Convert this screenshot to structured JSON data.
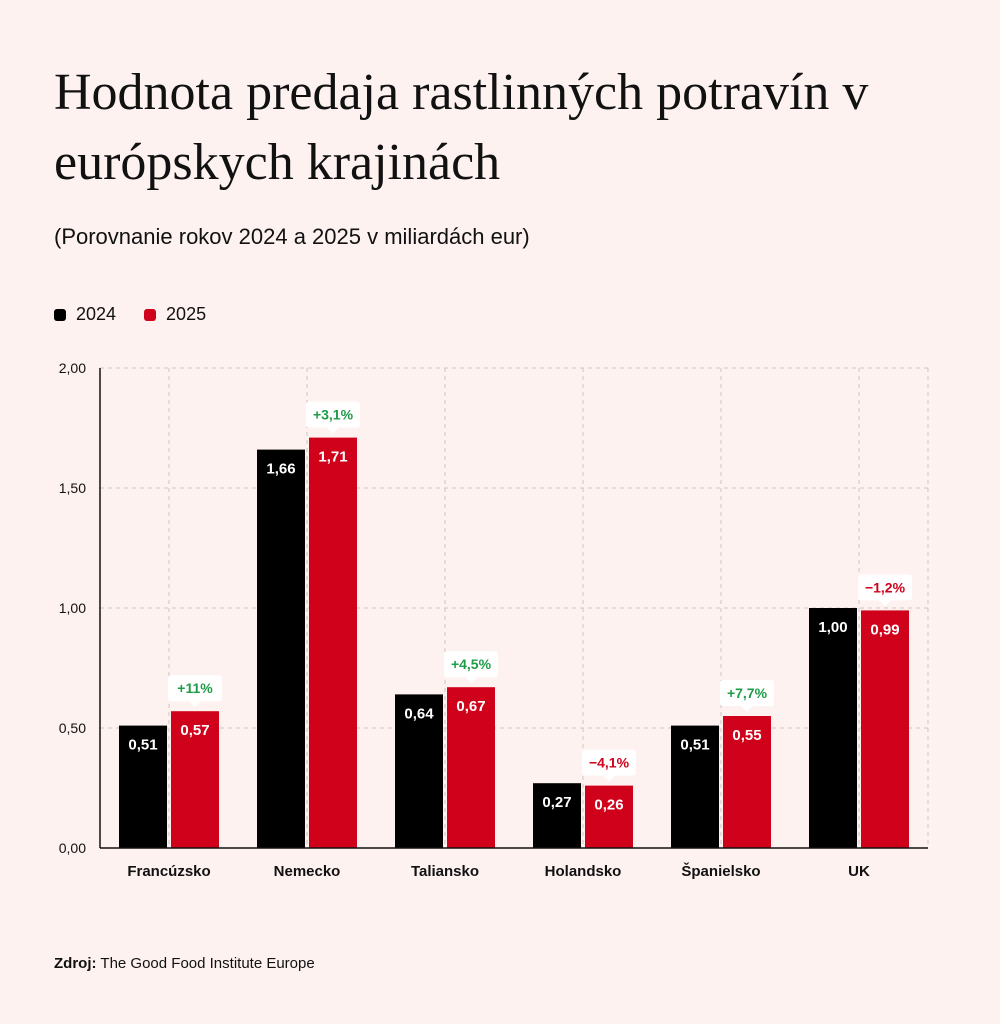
{
  "title": "Hodnota predaja rastlinných potravín v európskych krajinách",
  "subtitle": "(Porovnanie rokov 2024 a 2025 v miliardách eur)",
  "source": {
    "label": "Zdroj:",
    "text": "The Good Food Institute Europe"
  },
  "colors": {
    "y2024": "#000000",
    "y2025": "#d0021b",
    "positive": "#1e9c48",
    "negative": "#d0021b",
    "background": "#fdf2f0"
  },
  "chart_data": {
    "type": "bar",
    "categories": [
      "Francúzsko",
      "Nemecko",
      "Taliansko",
      "Holandsko",
      "Španielsko",
      "UK"
    ],
    "series": [
      {
        "name": "2024",
        "values": [
          0.51,
          1.66,
          0.64,
          0.27,
          0.51,
          1.0
        ],
        "labels": [
          "0,51",
          "1,66",
          "0,64",
          "0,27",
          "0,51",
          "1,00"
        ]
      },
      {
        "name": "2025",
        "values": [
          0.57,
          1.71,
          0.67,
          0.26,
          0.55,
          0.99
        ],
        "labels": [
          "0,57",
          "1,71",
          "0,67",
          "0,26",
          "0,55",
          "0,99"
        ]
      }
    ],
    "changes": [
      "+11%",
      "+3,1%",
      "+4,5%",
      "−4,1%",
      "+7,7%",
      "−1,2%"
    ],
    "change_sign": [
      "positive",
      "positive",
      "positive",
      "negative",
      "positive",
      "negative"
    ],
    "ylim": [
      0,
      2
    ],
    "yticks": [
      0,
      0.5,
      1,
      1.5,
      2
    ],
    "ytick_labels": [
      "0,00",
      "0,50",
      "1,00",
      "1,50",
      "2,00"
    ],
    "grid": true,
    "legend_position": "top-left"
  }
}
